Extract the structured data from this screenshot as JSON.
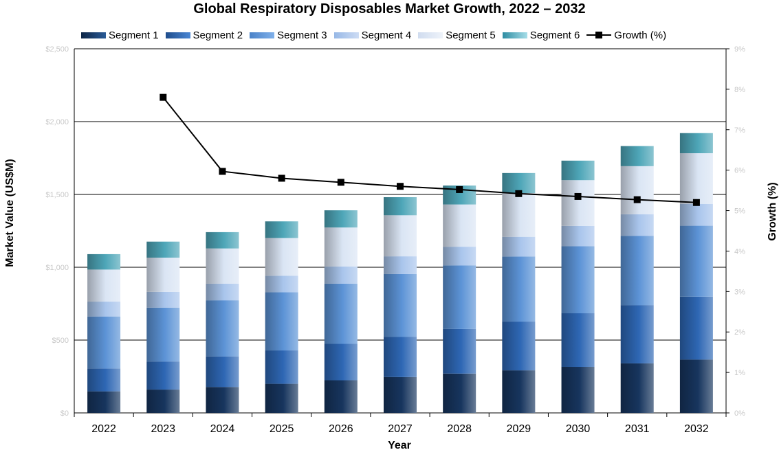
{
  "chart_data": {
    "type": "bar",
    "stacked": true,
    "title": "Global Respiratory Disposables Market Growth, 2022 – 2032",
    "xlabel": "Year",
    "ylabel": "Market Value (US$M)",
    "y2label": "Growth (%)",
    "categories": [
      "2022",
      "2023",
      "2024",
      "2025",
      "2026",
      "2027",
      "2028",
      "2029",
      "2030",
      "2031",
      "2032"
    ],
    "ylim": [
      0,
      2500
    ],
    "y_ticks": [
      "$0",
      "$500",
      "$1,000",
      "$1,500",
      "$2,000",
      "$2,500"
    ],
    "y2lim": [
      0,
      9
    ],
    "y2_ticks": [
      "0%",
      "1%",
      "2%",
      "3%",
      "4%",
      "5%",
      "6%",
      "7%",
      "8%",
      "9%"
    ],
    "legend_position": "top",
    "grid": true,
    "series": [
      {
        "name": "Segment 1",
        "color": "#17355e",
        "values": [
          148,
          160,
          178,
          200,
          224,
          246,
          270,
          292,
          316,
          340,
          366
        ]
      },
      {
        "name": "Segment 2",
        "color": "#2e67b4",
        "values": [
          157,
          193,
          210,
          229,
          250,
          277,
          306,
          335,
          368,
          400,
          432
        ]
      },
      {
        "name": "Segment 3",
        "color": "#5c93d6",
        "values": [
          357,
          370,
          385,
          399,
          413,
          430,
          437,
          447,
          460,
          476,
          487
        ]
      },
      {
        "name": "Segment 4",
        "color": "#a9c5ec",
        "values": [
          102,
          108,
          114,
          114,
          118,
          122,
          128,
          135,
          140,
          148,
          150
        ]
      },
      {
        "name": "Segment 5",
        "color": "#dae5f4",
        "values": [
          220,
          235,
          242,
          259,
          268,
          282,
          290,
          300,
          314,
          330,
          348
        ]
      },
      {
        "name": "Segment 6",
        "color": "#4ea6b8",
        "values": [
          106,
          110,
          112,
          114,
          118,
          124,
          130,
          138,
          134,
          138,
          138
        ]
      }
    ],
    "line_series": {
      "name": "Growth (%)",
      "axis": "right",
      "color": "#000000",
      "values": [
        null,
        7.8,
        5.97,
        5.8,
        5.7,
        5.6,
        5.52,
        5.42,
        5.35,
        5.27,
        5.2
      ]
    }
  }
}
